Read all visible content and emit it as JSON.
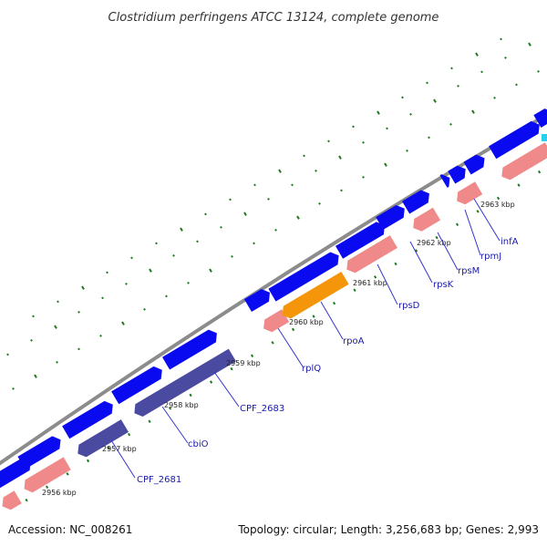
{
  "title": "Clostridium perfringens ATCC 13124, complete genome",
  "footer": {
    "accession": "Accession: NC_008261",
    "summary": "Topology: circular; Length: 3,256,683 bp; Genes: 2,993"
  },
  "colors": {
    "background": "#ffffff",
    "backbone": "#8c8c8c",
    "forward_gene": "#0a0af0",
    "reverse_gene": "#f08a8a",
    "highlight_gene": "#f5960a",
    "dark_gene": "#4a4aa0",
    "tick": "#1e7a1e",
    "label_line": "#3535d0"
  },
  "scale_labels": [
    "2956 kbp",
    "2957 kbp",
    "2958 kbp",
    "2959 kbp",
    "2960 kbp",
    "2961 kbp",
    "2962 kbp",
    "2963 kbp"
  ],
  "gene_labels": [
    "CPF_2681",
    "cbiO",
    "CPF_2683",
    "rplQ",
    "rpoA",
    "rpsD",
    "rpsK",
    "rpsM",
    "rpmJ",
    "infA"
  ]
}
